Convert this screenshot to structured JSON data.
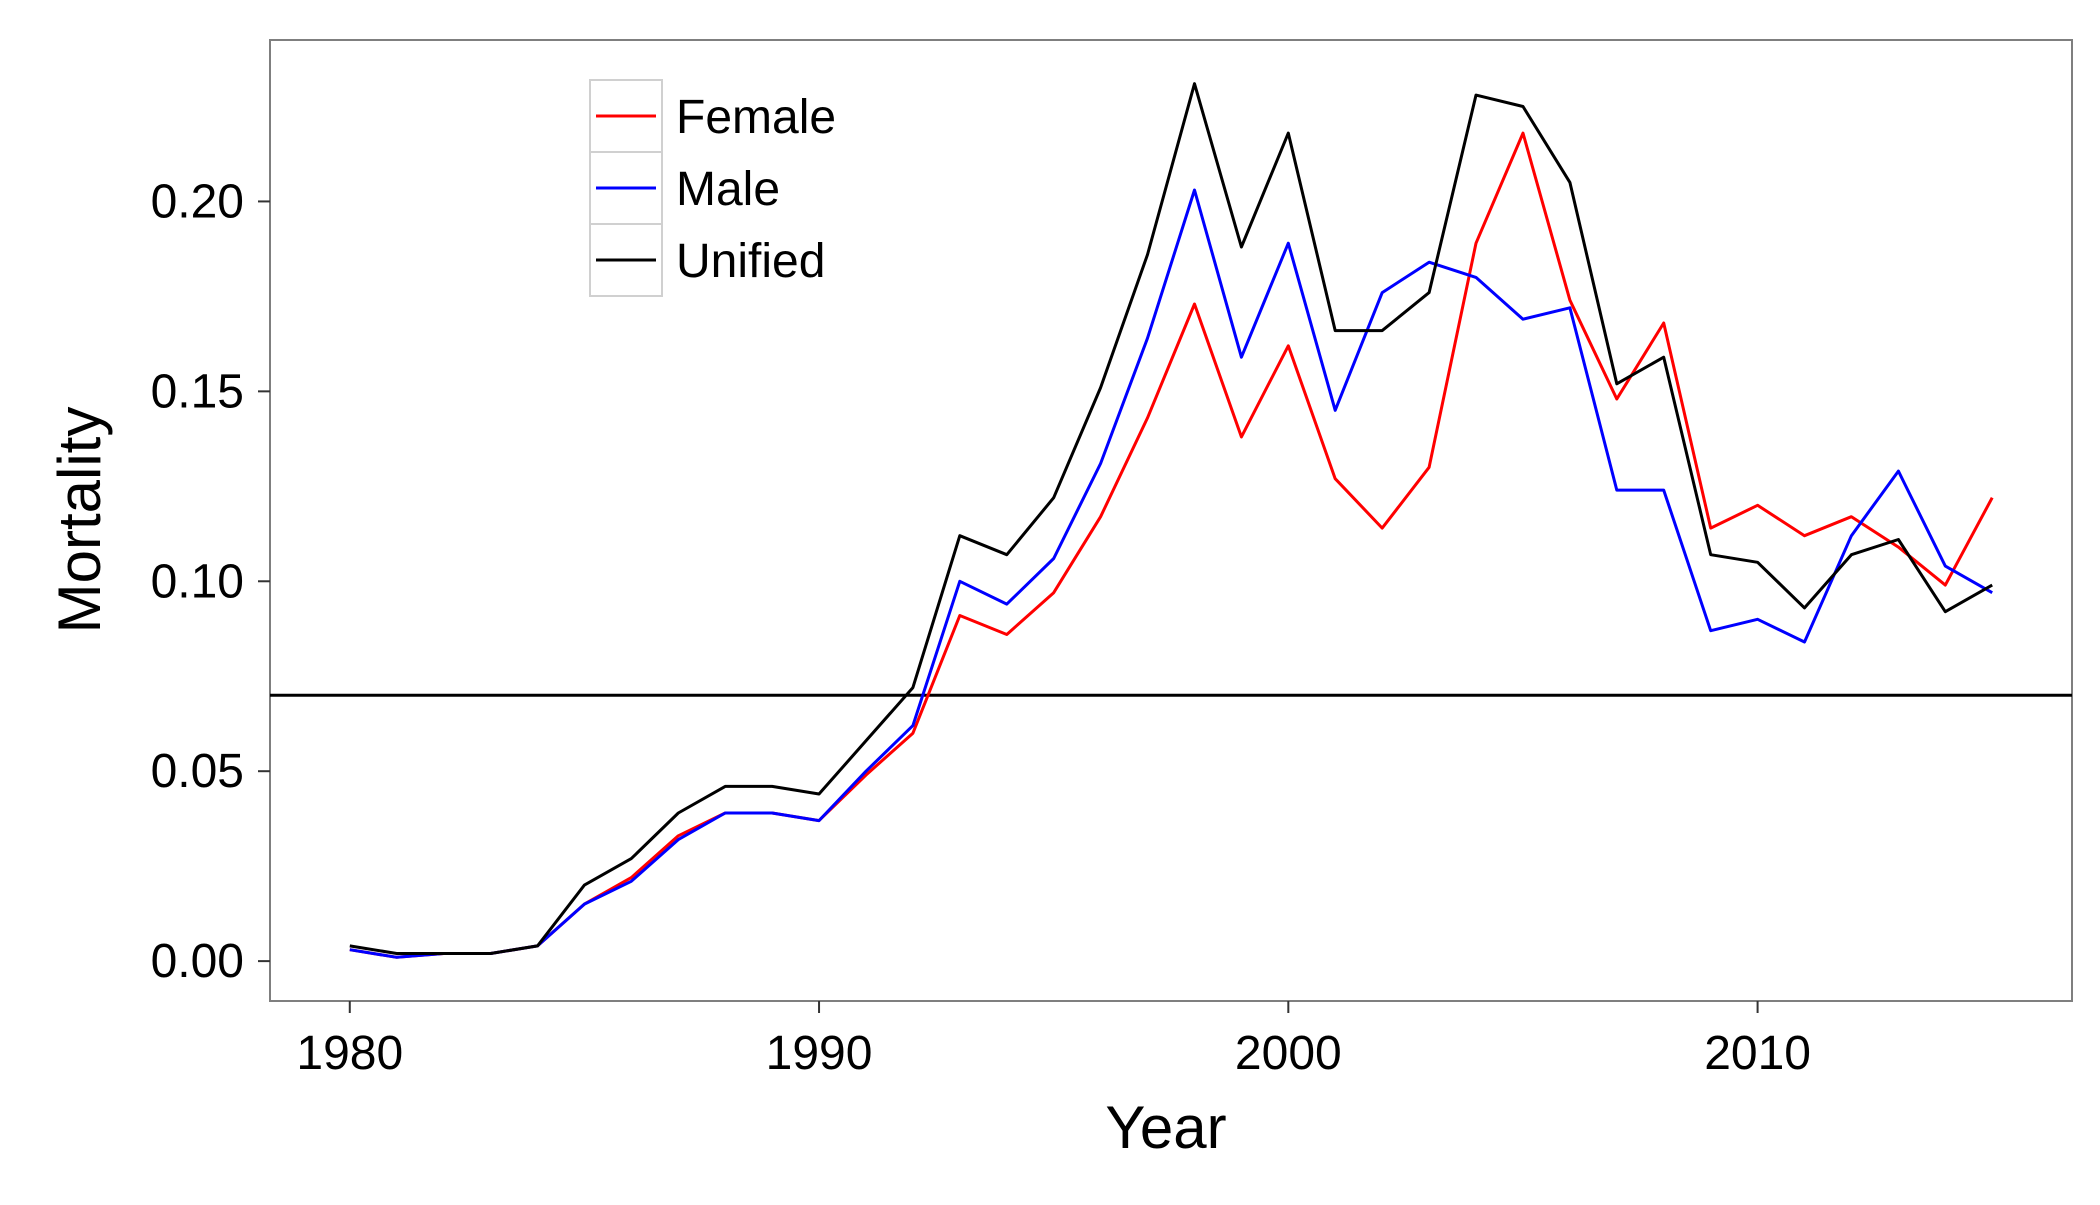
{
  "chart_data": {
    "type": "line",
    "title": "",
    "xlabel": "Year",
    "ylabel": "Mortality",
    "xlim": [
      1978.3,
      2016.7
    ],
    "ylim": [
      -0.0105,
      0.2425
    ],
    "x_ticks": [
      1980,
      1990,
      2000,
      2010
    ],
    "y_ticks": [
      0.0,
      0.05,
      0.1,
      0.15,
      0.2
    ],
    "x_tick_labels": [
      "1980",
      "1990",
      "2000",
      "2010"
    ],
    "y_tick_labels": [
      "0.00",
      "0.05",
      "0.10",
      "0.15",
      "0.20"
    ],
    "grid": false,
    "legend_position": "top-left (inside)",
    "reference_line": {
      "y": 0.07,
      "color": "#000000"
    },
    "x": [
      1980,
      1981,
      1982,
      1983,
      1984,
      1985,
      1986,
      1987,
      1988,
      1989,
      1990,
      1991,
      1992,
      1993,
      1994,
      1995,
      1996,
      1997,
      1998,
      1999,
      2000,
      2001,
      2002,
      2003,
      2004,
      2005,
      2006,
      2007,
      2008,
      2009,
      2010,
      2011,
      2012,
      2013,
      2014,
      2015
    ],
    "series": [
      {
        "name": "Female",
        "color": "#ff0000",
        "values": [
          0.003,
          0.001,
          0.002,
          0.002,
          0.004,
          0.015,
          0.022,
          0.033,
          0.039,
          0.039,
          0.037,
          0.049,
          0.06,
          0.091,
          0.086,
          0.097,
          0.117,
          0.143,
          0.173,
          0.138,
          0.162,
          0.127,
          0.114,
          0.13,
          0.189,
          0.218,
          0.174,
          0.148,
          0.168,
          0.114,
          0.12,
          0.112,
          0.117,
          0.109,
          0.099,
          0.122
        ]
      },
      {
        "name": "Male",
        "color": "#0000ff",
        "values": [
          0.003,
          0.001,
          0.002,
          0.002,
          0.004,
          0.015,
          0.021,
          0.032,
          0.039,
          0.039,
          0.037,
          0.05,
          0.062,
          0.1,
          0.094,
          0.106,
          0.131,
          0.164,
          0.203,
          0.159,
          0.189,
          0.145,
          0.176,
          0.184,
          0.18,
          0.169,
          0.172,
          0.124,
          0.124,
          0.087,
          0.09,
          0.084,
          0.112,
          0.129,
          0.104,
          0.097
        ]
      },
      {
        "name": "Unified",
        "color": "#000000",
        "values": [
          0.004,
          0.002,
          0.002,
          0.002,
          0.004,
          0.02,
          0.027,
          0.039,
          0.046,
          0.046,
          0.044,
          0.058,
          0.072,
          0.112,
          0.107,
          0.122,
          0.151,
          0.186,
          0.231,
          0.188,
          0.218,
          0.166,
          0.166,
          0.176,
          0.228,
          0.225,
          0.205,
          0.152,
          0.159,
          0.107,
          0.105,
          0.093,
          0.107,
          0.111,
          0.092,
          0.099
        ]
      }
    ]
  }
}
